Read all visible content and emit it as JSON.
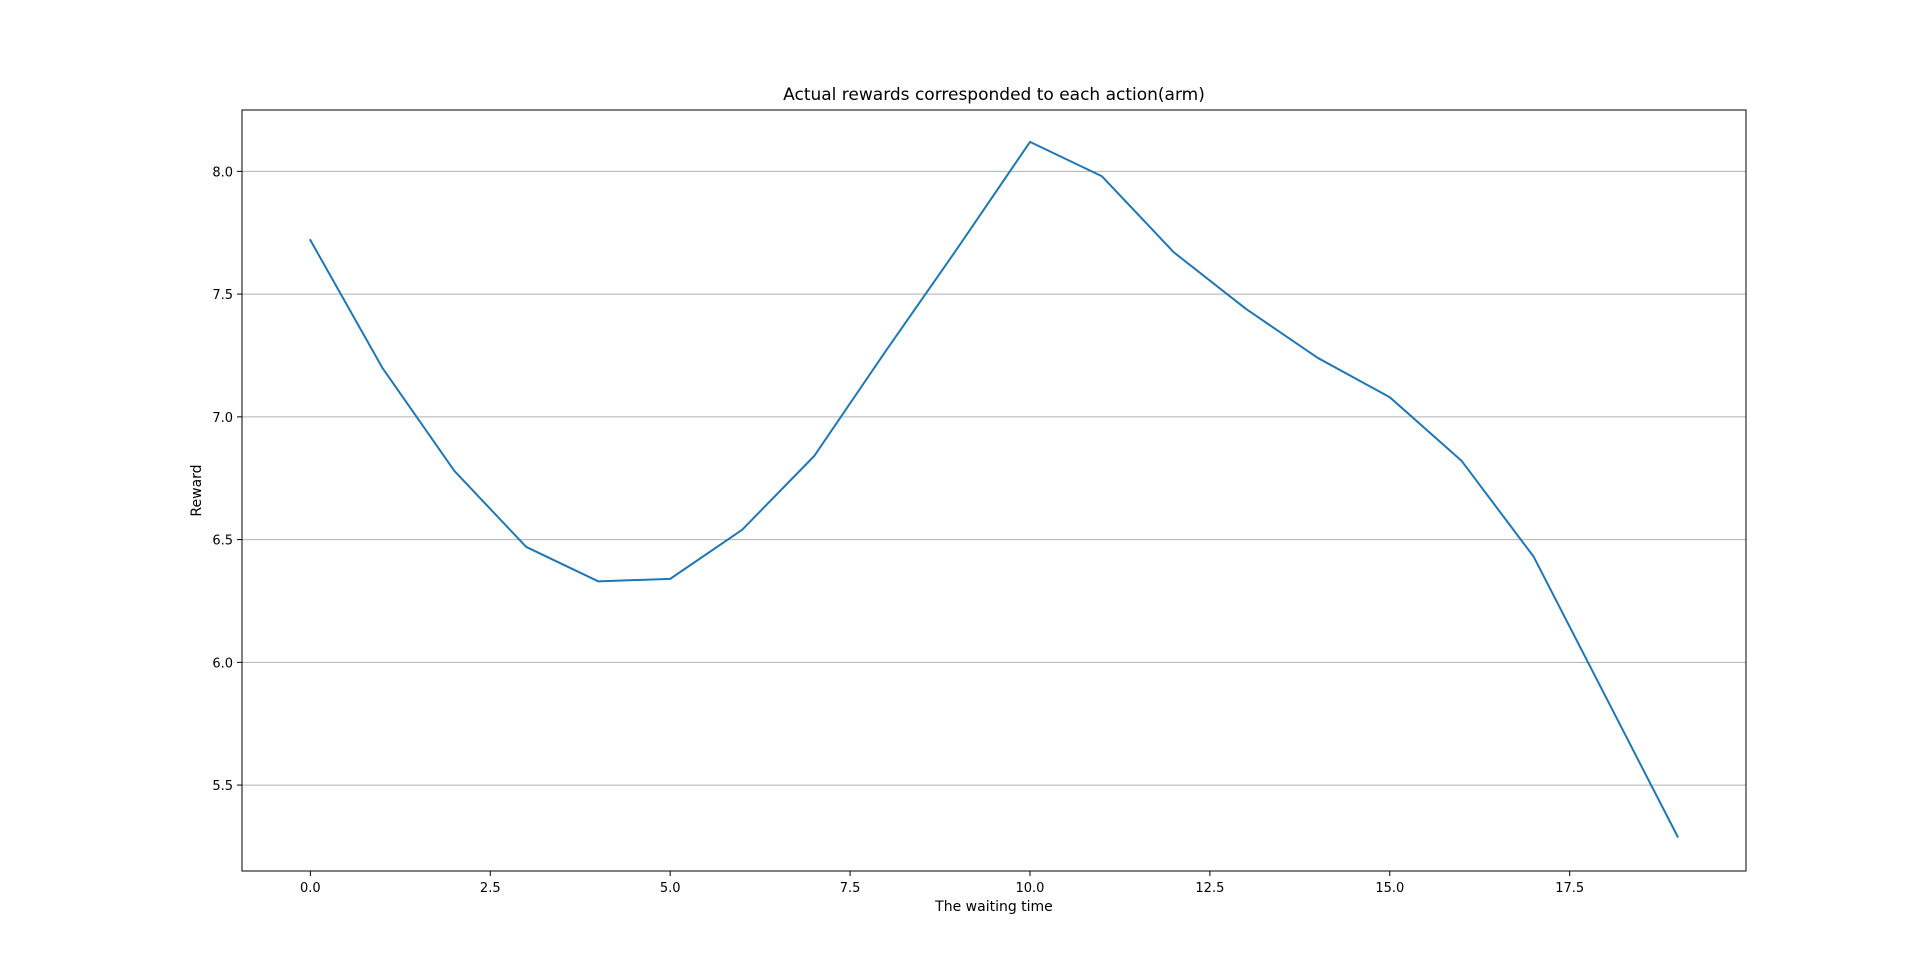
{
  "chart_data": {
    "type": "line",
    "title": "Actual rewards corresponded to each action(arm)",
    "xlabel": "The waiting time",
    "ylabel": "Reward",
    "xlim": [
      -0.95,
      19.95
    ],
    "ylim": [
      5.15,
      8.25
    ],
    "x_ticks": [
      0.0,
      2.5,
      5.0,
      7.5,
      10.0,
      12.5,
      15.0,
      17.5
    ],
    "x_tick_labels": [
      "0.0",
      "2.5",
      "5.0",
      "7.5",
      "10.0",
      "12.5",
      "15.0",
      "17.5"
    ],
    "y_ticks": [
      5.5,
      6.0,
      6.5,
      7.0,
      7.5,
      8.0
    ],
    "y_tick_labels": [
      "5.5",
      "6.0",
      "6.5",
      "7.0",
      "7.5",
      "8.0"
    ],
    "grid": "y",
    "legend": "none",
    "series": [
      {
        "color": "#1f77b4",
        "x": [
          0,
          1,
          2,
          3,
          4,
          5,
          6,
          7,
          8,
          9,
          10,
          11,
          12,
          13,
          14,
          15,
          16,
          17,
          18,
          19
        ],
        "y": [
          7.72,
          7.2,
          6.78,
          6.47,
          6.33,
          6.34,
          6.54,
          6.84,
          7.27,
          7.69,
          8.12,
          7.98,
          7.67,
          7.44,
          7.24,
          7.08,
          6.82,
          6.43,
          5.86,
          5.29
        ]
      }
    ]
  }
}
